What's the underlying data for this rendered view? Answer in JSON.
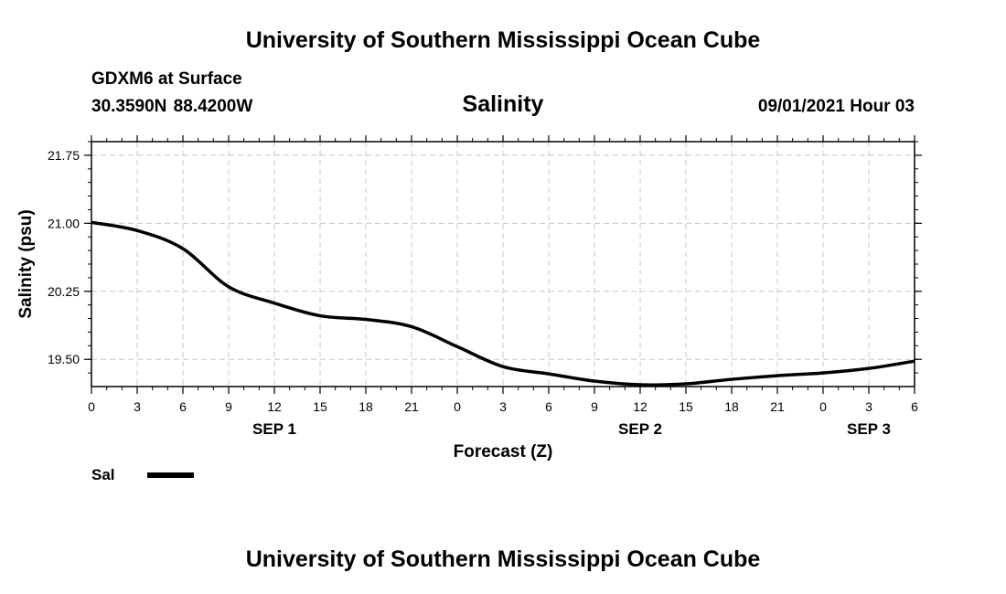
{
  "header": {
    "top_title": "University of Southern Mississippi Ocean Cube",
    "station": "GDXM6 at Surface",
    "coordinates": "30.3590N  88.4200W",
    "timestamp": "09/01/2021 Hour 03",
    "bottom_title": "University of Southern Mississippi Ocean Cube"
  },
  "chart_data": {
    "type": "line",
    "title": "Salinity",
    "xlabel": "Forecast (Z)",
    "ylabel": "Salinity (psu)",
    "xlim": [
      0,
      54
    ],
    "ylim": [
      19.2,
      21.9
    ],
    "x_ticks": [
      0,
      3,
      6,
      9,
      12,
      15,
      18,
      21,
      24,
      27,
      30,
      33,
      36,
      39,
      42,
      45,
      48,
      51,
      54
    ],
    "x_tick_labels": [
      "0",
      "3",
      "6",
      "9",
      "12",
      "15",
      "18",
      "21",
      "0",
      "3",
      "6",
      "9",
      "12",
      "15",
      "18",
      "21",
      "0",
      "3",
      "6"
    ],
    "date_labels": [
      {
        "x": 12,
        "label": "SEP 1"
      },
      {
        "x": 36,
        "label": "SEP 2"
      },
      {
        "x": 51,
        "label": "SEP 3"
      }
    ],
    "y_ticks": [
      19.5,
      20.25,
      21.0,
      21.75
    ],
    "y_tick_labels": [
      "19.50",
      "20.25",
      "21.00",
      "21.75"
    ],
    "grid": true,
    "legend_position": "bottom-left",
    "series": [
      {
        "name": "Sal",
        "color": "#000000",
        "x": [
          0,
          3,
          6,
          9,
          12,
          15,
          18,
          21,
          24,
          27,
          30,
          33,
          36,
          39,
          42,
          45,
          48,
          51,
          54
        ],
        "values": [
          21.01,
          20.92,
          20.72,
          20.3,
          20.12,
          19.98,
          19.94,
          19.86,
          19.64,
          19.42,
          19.34,
          19.26,
          19.22,
          19.23,
          19.28,
          19.32,
          19.35,
          19.4,
          19.48
        ]
      }
    ]
  }
}
